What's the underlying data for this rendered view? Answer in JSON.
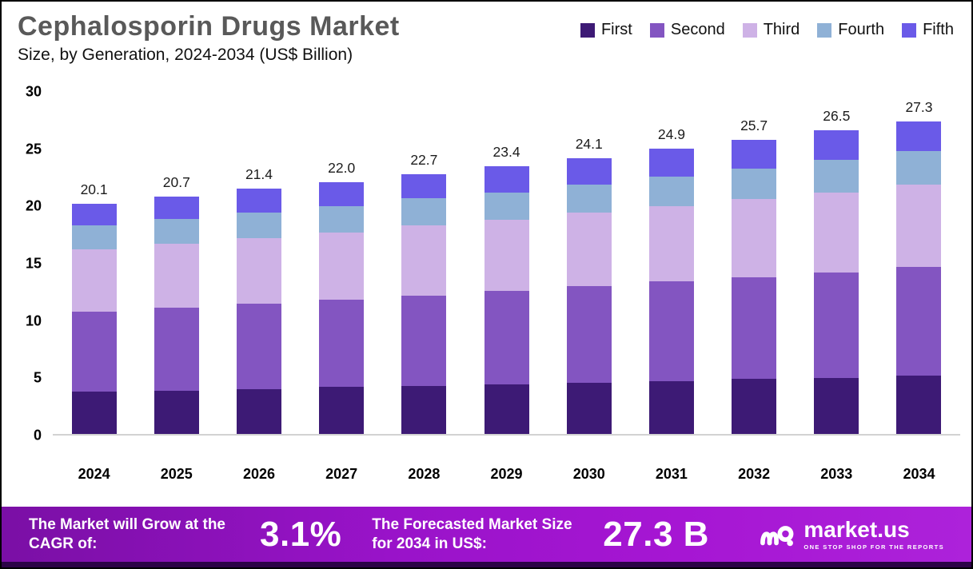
{
  "header": {
    "title": "Cephalosporin Drugs Market",
    "subtitle": "Size, by Generation, 2024-2034 (US$ Billion)"
  },
  "chart_data": {
    "type": "bar",
    "stacked": true,
    "title": "Cephalosporin Drugs Market Size, by Generation, 2024-2034 (US$ Billion)",
    "categories": [
      "2024",
      "2025",
      "2026",
      "2027",
      "2028",
      "2029",
      "2030",
      "2031",
      "2032",
      "2033",
      "2034"
    ],
    "series": [
      {
        "name": "First",
        "color": "#3d1a75",
        "values": [
          3.7,
          3.8,
          3.9,
          4.1,
          4.2,
          4.3,
          4.5,
          4.6,
          4.8,
          4.9,
          5.1
        ]
      },
      {
        "name": "Second",
        "color": "#8355c1",
        "values": [
          7.0,
          7.2,
          7.5,
          7.6,
          7.9,
          8.2,
          8.4,
          8.7,
          8.9,
          9.2,
          9.5
        ]
      },
      {
        "name": "Third",
        "color": "#ceb2e6",
        "values": [
          5.4,
          5.6,
          5.7,
          5.9,
          6.1,
          6.2,
          6.4,
          6.6,
          6.8,
          7.0,
          7.2
        ]
      },
      {
        "name": "Fourth",
        "color": "#8fb1d6",
        "values": [
          2.1,
          2.2,
          2.2,
          2.3,
          2.4,
          2.4,
          2.5,
          2.6,
          2.7,
          2.8,
          2.9
        ]
      },
      {
        "name": "Fifth",
        "color": "#6a5ae8",
        "values": [
          1.9,
          1.9,
          2.1,
          2.1,
          2.1,
          2.3,
          2.3,
          2.4,
          2.5,
          2.6,
          2.6
        ]
      }
    ],
    "totals": [
      "20.1",
      "20.7",
      "21.4",
      "22.0",
      "22.7",
      "23.4",
      "24.1",
      "24.9",
      "25.7",
      "26.5",
      "27.3"
    ],
    "xlabel": "",
    "ylabel": "",
    "ylim": [
      0,
      30
    ],
    "yticks": [
      0,
      5,
      10,
      15,
      20,
      25,
      30
    ],
    "grid": false,
    "legend_position": "top-right"
  },
  "footer": {
    "cagr_label": "The Market will Grow at the CAGR of:",
    "cagr_value": "3.1%",
    "forecast_label": "The Forecasted Market Size for 2034 in US$:",
    "forecast_value": "27.3 B",
    "brand": "market.us",
    "brand_tagline": "ONE STOP SHOP FOR THE REPORTS"
  }
}
